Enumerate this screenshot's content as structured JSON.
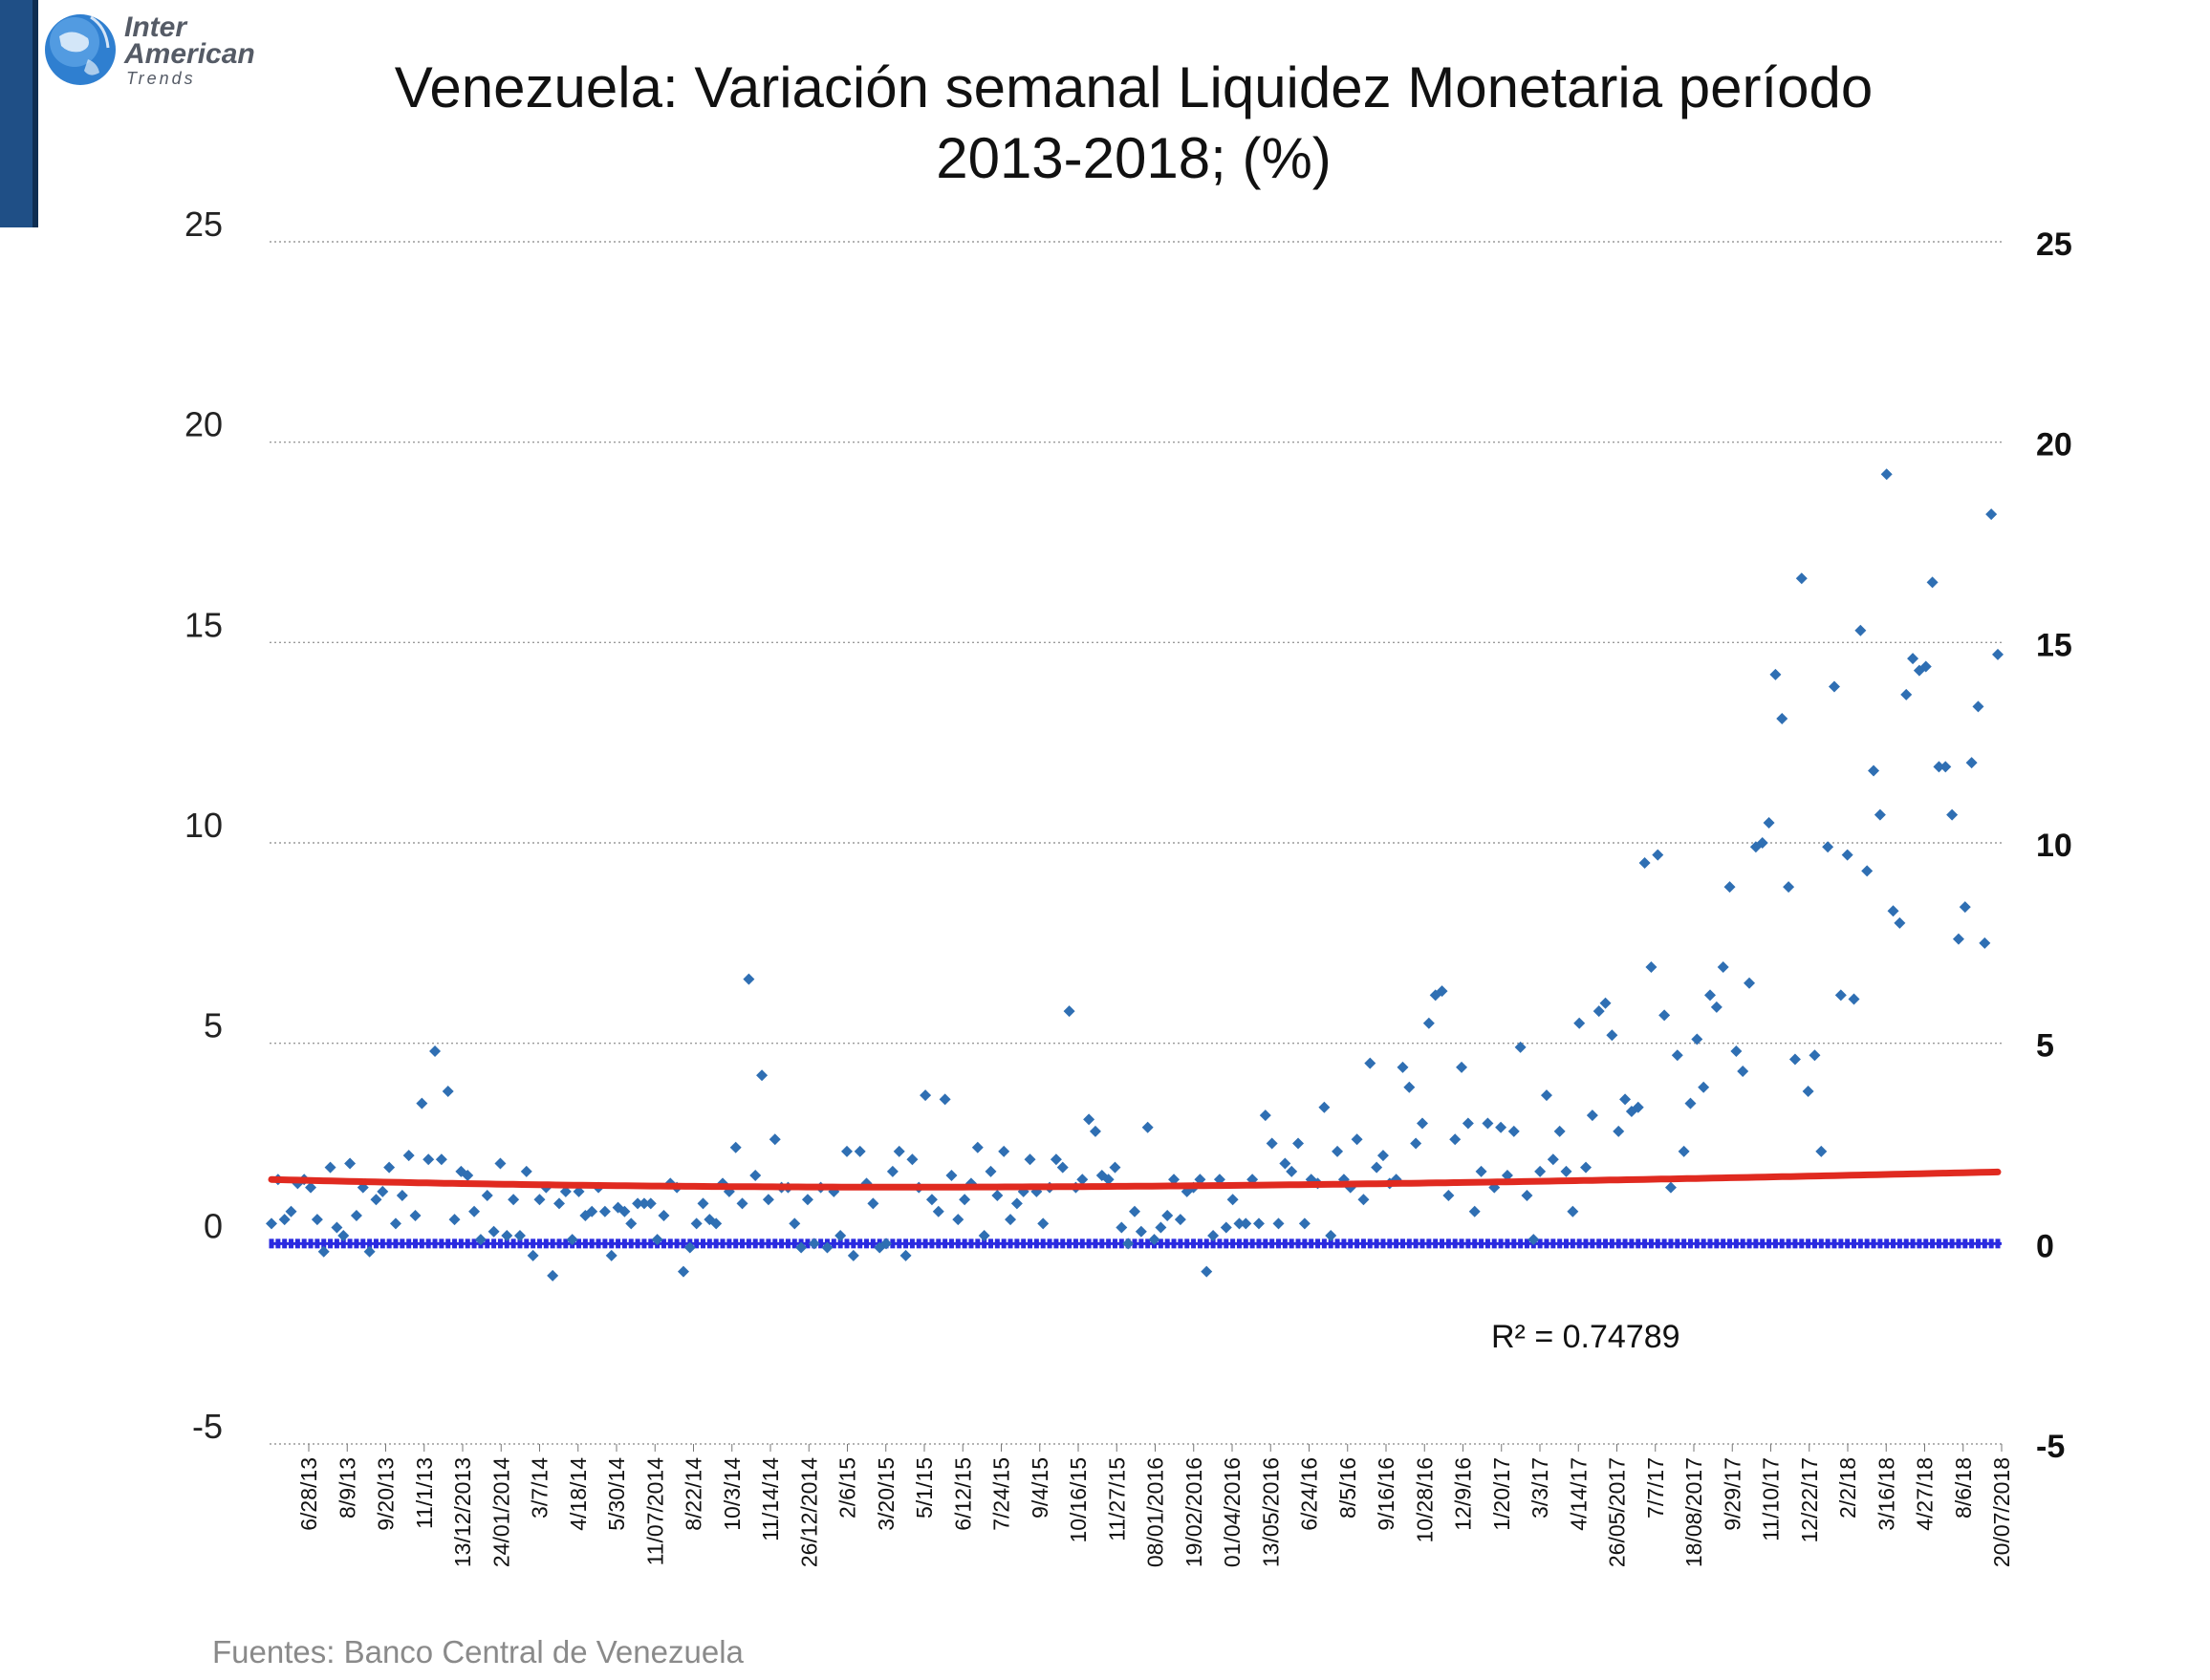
{
  "brand": {
    "line1": "Inter",
    "line2": "American",
    "line3": "Trends"
  },
  "colors": {
    "points": "#2f6fb3",
    "trend": "#e02a20",
    "zero_line": "#2a2ae0",
    "grid": "#9a9a9a",
    "logo_panel": "#1f4f86"
  },
  "chart_data": {
    "type": "scatter",
    "title": [
      "Venezuela: Variación semanal Liquidez Monetaria período",
      "2013-2018; (%)"
    ],
    "xlabel": "",
    "ylabel": "",
    "ylim": [
      -5,
      25
    ],
    "yticks_left": [
      "25",
      "20",
      "15",
      "10",
      "5",
      "0",
      "-5"
    ],
    "yticks_right": [
      "25",
      "20",
      "15",
      "10",
      "5",
      "0",
      "-5"
    ],
    "grid": true,
    "x_tick_labels": [
      "6/28/13",
      "8/9/13",
      "9/20/13",
      "11/1/13",
      "13/12/2013",
      "24/01/2014",
      "3/7/14",
      "4/18/14",
      "5/30/14",
      "11/07/2014",
      "8/22/14",
      "10/3/14",
      "11/14/14",
      "26/12/2014",
      "2/6/15",
      "3/20/15",
      "5/1/15",
      "6/12/15",
      "7/24/15",
      "9/4/15",
      "10/16/15",
      "11/27/15",
      "08/01/2016",
      "19/02/2016",
      "01/04/2016",
      "13/05/2016",
      "6/24/16",
      "8/5/16",
      "9/16/16",
      "10/28/16",
      "12/9/16",
      "1/20/17",
      "3/3/17",
      "4/14/17",
      "26/05/2017",
      "7/7/17",
      "18/08/2017",
      "9/29/17",
      "11/10/17",
      "12/22/17",
      "2/2/18",
      "3/16/18",
      "4/27/18",
      "8/6/18",
      "20/07/2018"
    ],
    "series": [
      {
        "values": [
          0.5,
          1.6,
          0.6,
          0.8,
          1.5,
          1.6,
          1.4,
          0.6,
          -0.2,
          1.9,
          0.4,
          0.2,
          2.0,
          0.7,
          1.4,
          -0.2,
          1.1,
          1.3,
          1.9,
          0.5,
          1.2,
          2.2,
          0.7,
          3.5,
          2.1,
          4.8,
          2.1,
          3.8,
          0.6,
          1.8,
          1.7,
          0.8,
          0.1,
          1.2,
          0.3,
          2.0,
          0.2,
          1.1,
          0.2,
          1.8,
          -0.3,
          1.1,
          1.4,
          -0.8,
          1.0,
          1.3,
          0.1,
          1.3,
          0.7,
          0.8,
          1.4,
          0.8,
          -0.3,
          0.9,
          0.8,
          0.5,
          1.0,
          1.0,
          1.0,
          0.1,
          0.7,
          1.5,
          1.4,
          -0.7,
          -0.1,
          0.5,
          1.0,
          0.6,
          0.5,
          1.5,
          1.3,
          2.4,
          1.0,
          6.6,
          1.7,
          4.2,
          1.1,
          2.6,
          1.4,
          1.4,
          0.5,
          -0.1,
          1.1,
          0.0,
          1.4,
          -0.1,
          1.3,
          0.2,
          2.3,
          -0.3,
          2.3,
          1.5,
          1.0,
          -0.1,
          0.0,
          1.8,
          2.3,
          -0.3,
          2.1,
          1.4,
          3.7,
          1.1,
          0.8,
          3.6,
          1.7,
          0.6,
          1.1,
          1.5,
          2.4,
          0.2,
          1.8,
          1.2,
          2.3,
          0.6,
          1.0,
          1.3,
          2.1,
          1.3,
          0.5,
          1.4,
          2.1,
          1.9,
          5.8,
          1.4,
          1.6,
          3.1,
          2.8,
          1.7,
          1.6,
          1.9,
          0.4,
          0.0,
          0.8,
          0.3,
          2.9,
          0.1,
          0.4,
          0.7,
          1.6,
          0.6,
          1.3,
          1.4,
          1.6,
          -0.7,
          0.2,
          1.6,
          0.4,
          1.1,
          0.5,
          0.5,
          1.6,
          0.5,
          3.2,
          2.5,
          0.5,
          2.0,
          1.8,
          2.5,
          0.5,
          1.6,
          1.5,
          3.4,
          0.2,
          2.3,
          1.6,
          1.4,
          2.6,
          1.1,
          4.5,
          1.9,
          2.2,
          1.5,
          1.6,
          4.4,
          3.9,
          2.5,
          3.0,
          5.5,
          6.2,
          6.3,
          1.2,
          2.6,
          4.4,
          3.0,
          0.8,
          1.8,
          3.0,
          1.4,
          2.9,
          1.7,
          2.8,
          4.9,
          1.2,
          0.1,
          1.8,
          3.7,
          2.1,
          2.8,
          1.8,
          0.8,
          5.5,
          1.9,
          3.2,
          5.8,
          6.0,
          5.2,
          2.8,
          3.6,
          3.3,
          3.4,
          9.5,
          6.9,
          9.7,
          5.7,
          1.4,
          4.7,
          2.3,
          3.5,
          5.1,
          3.9,
          6.2,
          5.9,
          6.9,
          8.9,
          4.8,
          4.3,
          6.5,
          9.9,
          10.0,
          10.5,
          14.2,
          13.1,
          8.9,
          4.6,
          16.6,
          3.8,
          4.7,
          2.3,
          9.9,
          13.9,
          6.2,
          9.7,
          6.1,
          15.3,
          9.3,
          11.8,
          10.7,
          19.2,
          8.3,
          8.0,
          13.7,
          14.6,
          14.3,
          14.4,
          16.5,
          11.9,
          11.9,
          10.7,
          7.6,
          8.4,
          12.0,
          13.4,
          7.5,
          18.2,
          14.7
        ]
      },
      {
        "type": "trend",
        "polynomial_coefficients": [
          1.6,
          -0.2166,
          0.06825,
          -0.003675
        ],
        "r_squared_label": "R² = 0.74789"
      },
      {
        "type": "reference",
        "y": 0
      }
    ],
    "annotations": [
      "Fuentes: Banco Central de Venezuela"
    ]
  }
}
